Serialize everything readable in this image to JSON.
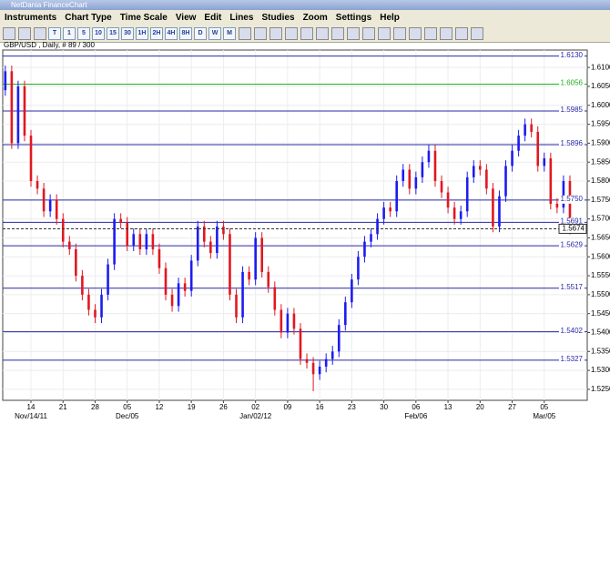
{
  "window": {
    "title": "NetDania FinanceChart"
  },
  "menu": [
    "Instruments",
    "Chart Type",
    "Time Scale",
    "View",
    "Edit",
    "Lines",
    "Studies",
    "Zoom",
    "Settings",
    "Help"
  ],
  "toolbar": [
    "T",
    "1",
    "5",
    "10",
    "15",
    "30",
    "1H",
    "2H",
    "4H",
    "8H",
    "D",
    "W",
    "M"
  ],
  "chart_data": {
    "type": "candlestick",
    "title": "GBP/USD , Daily, # 89 / 300",
    "up_color": "#1c1cf0",
    "down_color": "#e01820",
    "grid": true,
    "xlim": [
      -0.4,
      90.7
    ],
    "ylim": [
      1.5221,
      1.6146
    ],
    "yticks": [
      {
        "value": 1.525,
        "label": "1.5250"
      },
      {
        "value": 1.53,
        "label": "1.5300"
      },
      {
        "value": 1.535,
        "label": "1.5350"
      },
      {
        "value": 1.54,
        "label": "1.5400"
      },
      {
        "value": 1.545,
        "label": "1.5450"
      },
      {
        "value": 1.55,
        "label": "1.5500"
      },
      {
        "value": 1.555,
        "label": "1.5550"
      },
      {
        "value": 1.56,
        "label": "1.5600"
      },
      {
        "value": 1.565,
        "label": "1.5650"
      },
      {
        "value": 1.57,
        "label": "1.5700"
      },
      {
        "value": 1.575,
        "label": "1.5750"
      },
      {
        "value": 1.58,
        "label": "1.5800"
      },
      {
        "value": 1.585,
        "label": "1.5850"
      },
      {
        "value": 1.59,
        "label": "1.5900"
      },
      {
        "value": 1.595,
        "label": "1.5950"
      },
      {
        "value": 1.6,
        "label": "1.6000"
      },
      {
        "value": 1.605,
        "label": "1.6050"
      },
      {
        "value": 1.61,
        "label": "1.6100"
      }
    ],
    "xticks": [
      {
        "value": 4,
        "label": "14"
      },
      {
        "value": 9,
        "label": "21"
      },
      {
        "value": 14,
        "label": "28"
      },
      {
        "value": 19,
        "label": "05"
      },
      {
        "value": 24,
        "label": "12"
      },
      {
        "value": 29,
        "label": "19"
      },
      {
        "value": 34,
        "label": "26"
      },
      {
        "value": 39,
        "label": "02"
      },
      {
        "value": 44,
        "label": "09"
      },
      {
        "value": 49,
        "label": "16"
      },
      {
        "value": 54,
        "label": "23"
      },
      {
        "value": 59,
        "label": "30"
      },
      {
        "value": 64,
        "label": "06"
      },
      {
        "value": 69,
        "label": "13"
      },
      {
        "value": 74,
        "label": "20"
      },
      {
        "value": 79,
        "label": "27"
      },
      {
        "value": 84,
        "label": "05"
      }
    ],
    "date_labels": [
      {
        "value": 4,
        "label": "Nov/14/11"
      },
      {
        "value": 19,
        "label": "Dec/05"
      },
      {
        "value": 39,
        "label": "Jan/02/12"
      },
      {
        "value": 64,
        "label": "Feb/06"
      },
      {
        "value": 84,
        "label": "Mar/05"
      }
    ],
    "levels": [
      {
        "value": 1.613,
        "label": "1.6130",
        "color": "#2828a8"
      },
      {
        "value": 1.6056,
        "label": "1.6056",
        "color": "#20b020"
      },
      {
        "value": 1.5985,
        "label": "1.5985",
        "color": "#2828a8"
      },
      {
        "value": 1.5896,
        "label": "1.5896",
        "color": "#2828a8"
      },
      {
        "value": 1.575,
        "label": "1.5750",
        "color": "#2828a8"
      },
      {
        "value": 1.5691,
        "label": "1.5691",
        "color": "#2828a8"
      },
      {
        "value": 1.5629,
        "label": "1.5629",
        "color": "#2828a8"
      },
      {
        "value": 1.5517,
        "label": "1.5517",
        "color": "#2828a8"
      },
      {
        "value": 1.5402,
        "label": "1.5402",
        "color": "#2828a8"
      },
      {
        "value": 1.5327,
        "label": "1.5327",
        "color": "#2828a8"
      }
    ],
    "last_price": 1.5674,
    "open": [
      1.604,
      1.609,
      1.59,
      1.605,
      1.592,
      1.58,
      1.578,
      1.572,
      1.575,
      1.57,
      1.564,
      1.562,
      1.555,
      1.55,
      1.546,
      1.544,
      1.55,
      1.558,
      1.57,
      1.569,
      1.563,
      1.566,
      1.562,
      1.566,
      1.562,
      1.557,
      1.55,
      1.547,
      1.553,
      1.551,
      1.559,
      1.568,
      1.564,
      1.561,
      1.568,
      1.566,
      1.55,
      1.544,
      1.556,
      1.554,
      1.565,
      1.556,
      1.552,
      1.546,
      1.54,
      1.545,
      1.541,
      1.533,
      1.532,
      1.529,
      1.531,
      1.533,
      1.535,
      1.542,
      1.548,
      1.554,
      1.56,
      1.564,
      1.566,
      1.57,
      1.573,
      1.572,
      1.58,
      1.583,
      1.578,
      1.581,
      1.585,
      1.588,
      1.58,
      1.577,
      1.573,
      1.57,
      1.572,
      1.581,
      1.584,
      1.583,
      1.578,
      1.568,
      1.576,
      1.584,
      1.588,
      1.592,
      1.595,
      1.593,
      1.584,
      1.586,
      1.574,
      1.573,
      1.58
    ],
    "high": [
      1.6105,
      1.6105,
      1.6065,
      1.6065,
      1.5935,
      1.5815,
      1.5795,
      1.5765,
      1.5765,
      1.5715,
      1.5655,
      1.5635,
      1.5565,
      1.5515,
      1.5475,
      1.5515,
      1.5595,
      1.5715,
      1.5715,
      1.5705,
      1.5675,
      1.5675,
      1.5675,
      1.5675,
      1.5635,
      1.5585,
      1.5515,
      1.5545,
      1.5545,
      1.5605,
      1.5695,
      1.5695,
      1.5655,
      1.5695,
      1.5695,
      1.5675,
      1.5515,
      1.5575,
      1.5575,
      1.5665,
      1.5665,
      1.5575,
      1.5535,
      1.5475,
      1.5465,
      1.5465,
      1.5425,
      1.5345,
      1.5335,
      1.5325,
      1.5345,
      1.5365,
      1.5435,
      1.5495,
      1.5555,
      1.5615,
      1.5655,
      1.5675,
      1.5715,
      1.5745,
      1.5745,
      1.5815,
      1.5845,
      1.5845,
      1.5825,
      1.5865,
      1.5895,
      1.5895,
      1.5815,
      1.5785,
      1.5745,
      1.5735,
      1.5825,
      1.5855,
      1.5855,
      1.5845,
      1.5795,
      1.5775,
      1.5855,
      1.5895,
      1.5935,
      1.5965,
      1.5965,
      1.5945,
      1.5875,
      1.5875,
      1.5755,
      1.5815,
      1.5815
    ],
    "low": [
      1.6025,
      1.5885,
      1.5885,
      1.5905,
      1.5785,
      1.5765,
      1.5705,
      1.5705,
      1.5685,
      1.5625,
      1.5605,
      1.5535,
      1.5485,
      1.5445,
      1.5425,
      1.5425,
      1.5485,
      1.5565,
      1.5675,
      1.5615,
      1.5615,
      1.5605,
      1.5605,
      1.5605,
      1.5555,
      1.5485,
      1.5455,
      1.5455,
      1.5495,
      1.5495,
      1.5575,
      1.5625,
      1.5595,
      1.5595,
      1.5645,
      1.5485,
      1.5425,
      1.5425,
      1.5525,
      1.5525,
      1.5545,
      1.5505,
      1.5445,
      1.5385,
      1.5385,
      1.5395,
      1.5315,
      1.5305,
      1.5245,
      1.5275,
      1.5295,
      1.5315,
      1.5335,
      1.5405,
      1.5465,
      1.5525,
      1.5585,
      1.5625,
      1.5645,
      1.5685,
      1.5705,
      1.5705,
      1.5785,
      1.5765,
      1.5765,
      1.5795,
      1.5835,
      1.5785,
      1.5755,
      1.5715,
      1.5685,
      1.5685,
      1.5705,
      1.5795,
      1.5815,
      1.5765,
      1.5665,
      1.5665,
      1.5745,
      1.5825,
      1.5865,
      1.5905,
      1.5915,
      1.5825,
      1.5825,
      1.5725,
      1.5715,
      1.5715,
      1.5659
    ],
    "close": [
      1.609,
      1.59,
      1.605,
      1.592,
      1.58,
      1.578,
      1.572,
      1.575,
      1.57,
      1.564,
      1.562,
      1.555,
      1.55,
      1.546,
      1.544,
      1.55,
      1.558,
      1.57,
      1.569,
      1.563,
      1.566,
      1.562,
      1.566,
      1.562,
      1.557,
      1.55,
      1.547,
      1.553,
      1.551,
      1.559,
      1.568,
      1.564,
      1.561,
      1.568,
      1.566,
      1.55,
      1.544,
      1.556,
      1.554,
      1.565,
      1.556,
      1.552,
      1.546,
      1.54,
      1.545,
      1.541,
      1.533,
      1.532,
      1.529,
      1.531,
      1.533,
      1.535,
      1.542,
      1.548,
      1.554,
      1.56,
      1.564,
      1.566,
      1.57,
      1.573,
      1.572,
      1.58,
      1.583,
      1.578,
      1.581,
      1.585,
      1.588,
      1.58,
      1.577,
      1.573,
      1.57,
      1.572,
      1.581,
      1.584,
      1.583,
      1.578,
      1.568,
      1.576,
      1.584,
      1.588,
      1.592,
      1.595,
      1.593,
      1.584,
      1.586,
      1.574,
      1.573,
      1.58,
      1.5674
    ]
  }
}
